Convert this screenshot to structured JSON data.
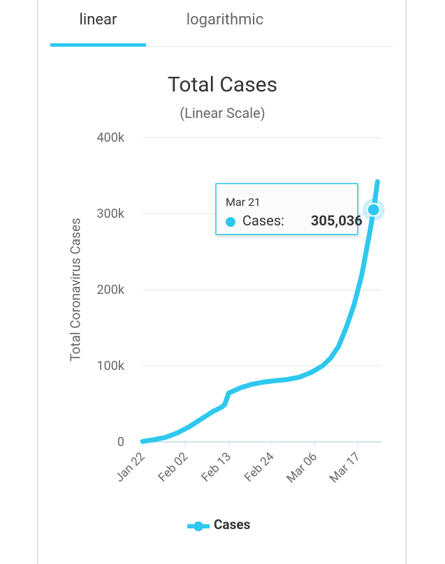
{
  "tabs": [
    {
      "label": "linear",
      "active": true
    },
    {
      "label": "logarithmic",
      "active": false
    }
  ],
  "colors": {
    "accent": "#2ec8ef",
    "grid": "#e6e6e6",
    "text": "#333333",
    "muted": "#666666"
  },
  "tooltip": {
    "date": "Mar 21",
    "series_label": "Cases:",
    "value": "305,036"
  },
  "chart_data": {
    "type": "line",
    "title": "Total Cases",
    "subtitle": "(Linear Scale)",
    "xlabel": "",
    "ylabel": "Total Coronavirus Cases",
    "ylim": [
      0,
      400000
    ],
    "y_ticks": [
      "0",
      "100k",
      "200k",
      "300k",
      "400k"
    ],
    "x_ticks": [
      "Jan 22",
      "Feb 02",
      "Feb 13",
      "Feb 24",
      "Mar 06",
      "Mar 17"
    ],
    "grid": true,
    "legend_position": "bottom",
    "series": [
      {
        "name": "Cases",
        "x": [
          "Jan 22",
          "Jan 25",
          "Jan 28",
          "Jan 31",
          "Feb 03",
          "Feb 06",
          "Feb 09",
          "Feb 11",
          "Feb 12",
          "Feb 13",
          "Feb 16",
          "Feb 19",
          "Feb 22",
          "Feb 25",
          "Feb 28",
          "Mar 02",
          "Mar 05",
          "Mar 08",
          "Mar 10",
          "Mar 12",
          "Mar 14",
          "Mar 16",
          "Mar 18",
          "Mar 20",
          "Mar 21",
          "Mar 22"
        ],
        "values": [
          555,
          2900,
          6100,
          12000,
          20000,
          30000,
          40000,
          45000,
          49000,
          64000,
          71000,
          75800,
          78600,
          80400,
          82000,
          85000,
          91000,
          100000,
          110000,
          125000,
          150000,
          180000,
          220000,
          275000,
          305036,
          342000
        ]
      }
    ]
  }
}
